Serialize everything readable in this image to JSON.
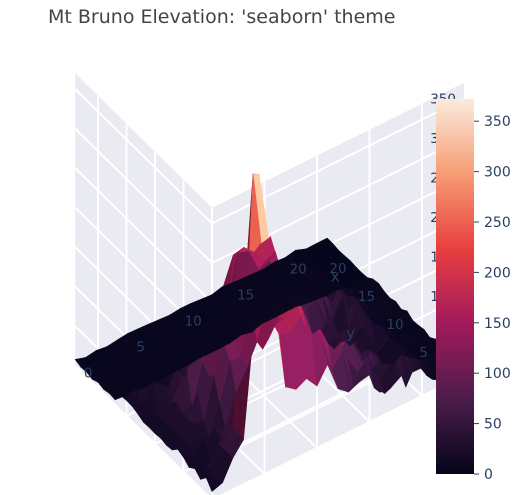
{
  "chart_data": {
    "type": "surface",
    "title": "Mt Bruno Elevation: 'seaborn' theme",
    "template": "seaborn",
    "colorscale": "rocket",
    "x_axis": {
      "label": "x",
      "ticks": [
        "0",
        "5",
        "10",
        "15",
        "20"
      ]
    },
    "y_axis": {
      "label": "y",
      "ticks": [
        "0",
        "5",
        "10",
        "15",
        "20"
      ]
    },
    "z_axis": {
      "label": "",
      "ticks": [
        "0",
        "50",
        "100",
        "150",
        "200",
        "250",
        "300",
        "350"
      ],
      "range": [
        0,
        350
      ]
    },
    "colorbar": {
      "ticks": [
        "0",
        "50",
        "100",
        "150",
        "200",
        "250",
        "300",
        "350"
      ],
      "range": [
        0,
        372
      ]
    },
    "grid_size": 25,
    "peak": {
      "x": 5,
      "y": 1,
      "z": 372
    },
    "colors": {
      "scene_background": "#eaeaf2",
      "grid_line": "#ffffff",
      "colorscale_stops": [
        "#03051a",
        "#4c1d4b",
        "#a11a5b",
        "#e83f3f",
        "#f69c73",
        "#faebdd"
      ]
    }
  }
}
